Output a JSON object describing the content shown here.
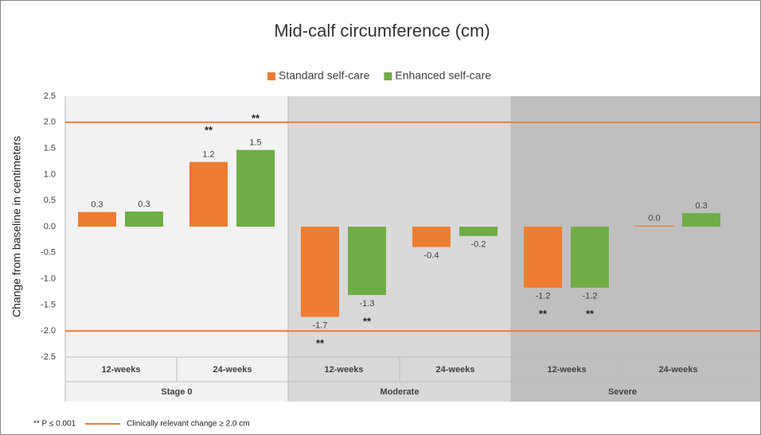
{
  "chart_data": {
    "type": "bar",
    "title": "Mid-calf circumference (cm)",
    "y_label": "Change from baseline in centimeters",
    "categories": [
      "12-weeks",
      "24-weeks",
      "12-weeks",
      "24-weeks",
      "12-weeks",
      "24-weeks"
    ],
    "groups": [
      {
        "name": "Stage 0",
        "color": "#f2f2f2"
      },
      {
        "name": "Moderate",
        "color": "#d9d9d9"
      },
      {
        "name": "Severe",
        "color": "#bfbfbf"
      }
    ],
    "series": [
      {
        "name": "Standard self-care",
        "color": "#ed7d31",
        "values": [
          0.28,
          1.24,
          -1.73,
          -0.39,
          -1.17,
          0.02
        ],
        "value_labels": [
          "0.3",
          "1.2",
          "-1.7",
          "-0.4",
          "-1.2",
          "0.0"
        ],
        "markers": [
          null,
          "**",
          "**",
          null,
          "**",
          null
        ]
      },
      {
        "name": "Enhanced self-care",
        "color": "#70ad47",
        "values": [
          0.29,
          1.47,
          -1.31,
          -0.18,
          -1.17,
          0.26
        ],
        "value_labels": [
          "0.3",
          "1.5",
          "-1.3",
          "-0.2",
          "-1.2",
          "0.3"
        ],
        "markers": [
          null,
          "**",
          "**",
          null,
          "**",
          null
        ]
      }
    ],
    "ylim": [
      -2.5,
      2.5
    ],
    "yticks": [
      -2.5,
      {
        "value": -2,
        "label": "-2.0"
      },
      -1.5,
      {
        "value": -1,
        "label": "-1.0"
      },
      -0.5,
      {
        "value": 0,
        "label": "0.0"
      },
      0.5,
      {
        "value": 1,
        "label": "1.0"
      },
      1.5,
      {
        "value": 2,
        "label": "2.0"
      },
      2.5
    ],
    "reference_lines": {
      "values": [
        2,
        -2
      ],
      "color": "#ed7d31",
      "label": "Clinically relevant change ≥ 2.0 cm"
    },
    "footnote": "** P ≤ 0.001",
    "legend": "top",
    "grid": false
  }
}
